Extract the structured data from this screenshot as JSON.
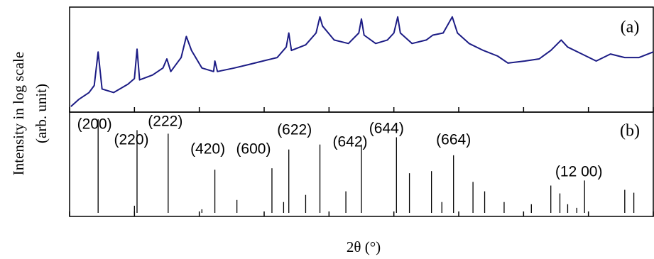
{
  "chart_data": [
    {
      "type": "line",
      "label": "(a)",
      "ylabel": "Intensity in log scale",
      "yunit": "(arb. unit)",
      "color": "#1c1c85",
      "xlim": [
        10,
        55
      ],
      "ylim": [
        0,
        100
      ],
      "xticks": [
        10,
        15,
        20,
        25,
        30,
        35,
        40,
        45,
        50,
        55
      ],
      "x": [
        10.1,
        10.7,
        11.5,
        11.9,
        12.2,
        12.5,
        13.4,
        14.5,
        15.0,
        15.2,
        15.4,
        16.4,
        17.2,
        17.5,
        17.8,
        18.6,
        19.0,
        19.4,
        20.2,
        21.1,
        21.2,
        21.4,
        22.7,
        23.8,
        24.9,
        26.0,
        26.7,
        26.9,
        27.1,
        28.2,
        29.0,
        29.3,
        29.5,
        30.4,
        31.5,
        32.3,
        32.5,
        32.7,
        33.6,
        34.5,
        35.0,
        35.3,
        35.5,
        36.4,
        37.5,
        38.0,
        38.8,
        39.5,
        39.9,
        40.8,
        41.9,
        43.0,
        43.8,
        45.1,
        46.2,
        47.1,
        47.9,
        48.4,
        49.5,
        50.6,
        51.7,
        52.8,
        53.9,
        55.0
      ],
      "values": [
        5.4,
        12.2,
        18.9,
        25.7,
        58.1,
        22.3,
        18.9,
        27.0,
        32.4,
        60.8,
        31.1,
        35.8,
        42.6,
        51.4,
        39.2,
        52.7,
        73.0,
        59.5,
        42.6,
        39.2,
        49.3,
        39.2,
        42.6,
        45.9,
        49.3,
        52.7,
        62.8,
        76.4,
        59.5,
        64.9,
        76.4,
        91.9,
        83.1,
        69.6,
        66.2,
        76.4,
        89.9,
        74.3,
        66.2,
        69.6,
        76.4,
        91.9,
        76.4,
        66.2,
        69.6,
        74.3,
        76.4,
        91.9,
        76.4,
        66.2,
        59.5,
        54.1,
        47.3,
        49.3,
        51.4,
        59.5,
        69.6,
        62.8,
        56.1,
        49.3,
        56.1,
        52.7,
        52.7,
        58.1
      ]
    },
    {
      "type": "stick",
      "label": "(b)",
      "xlabel": "2θ (°)",
      "color": "#000000",
      "xlim": [
        10,
        55
      ],
      "ylim": [
        0,
        100
      ],
      "xticks": [
        10,
        15,
        20,
        25,
        30,
        35,
        40,
        45,
        50,
        55
      ],
      "x": [
        12.2,
        15.0,
        15.2,
        17.6,
        20.2,
        21.2,
        22.9,
        25.6,
        26.5,
        26.9,
        28.2,
        29.3,
        31.3,
        32.5,
        35.2,
        36.2,
        37.9,
        38.7,
        39.6,
        41.1,
        42.0,
        43.5,
        45.6,
        47.1,
        47.8,
        48.4,
        49.1,
        49.7,
        52.8,
        53.5
      ],
      "values": [
        94.2,
        7.2,
        83.3,
        79.7,
        3.6,
        43.5,
        13.0,
        44.9,
        10.9,
        63.8,
        18.1,
        68.8,
        21.7,
        68.8,
        76.1,
        39.9,
        42.0,
        10.9,
        58.0,
        31.2,
        21.7,
        10.9,
        8.7,
        27.5,
        19.6,
        8.7,
        5.1,
        32.6,
        23.2,
        20.3
      ],
      "peak_labels": [
        {
          "label": "(200)",
          "x": 12.2
        },
        {
          "label": "(220)",
          "x": 15.2
        },
        {
          "label": "(222)",
          "x": 17.6
        },
        {
          "label": "(420)",
          "x": 21.2
        },
        {
          "label": "(600)",
          "x": 25.6
        },
        {
          "label": "(622)",
          "x": 26.9
        },
        {
          "label": "(642)",
          "x": 32.5
        },
        {
          "label": "(644)",
          "x": 35.2
        },
        {
          "label": "(664)",
          "x": 39.6
        },
        {
          "label": "(12 00)",
          "x": 49.7
        }
      ]
    }
  ]
}
